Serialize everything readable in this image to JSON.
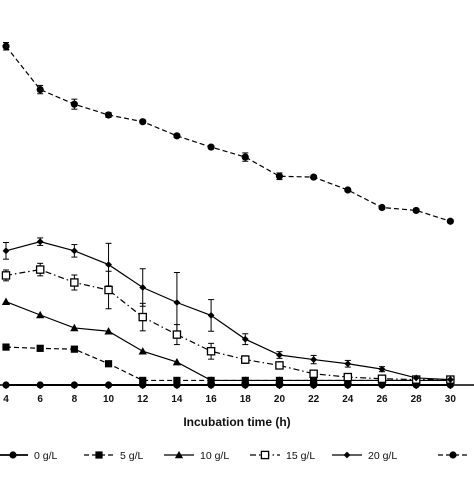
{
  "chart_data": {
    "type": "line",
    "xlabel": "Incubation time (h)",
    "ylabel": "",
    "xlim": [
      4,
      31.5
    ],
    "ylim": [
      0,
      90
    ],
    "x_ticks": [
      4,
      6,
      8,
      10,
      12,
      14,
      16,
      18,
      20,
      22,
      24,
      26,
      28,
      30
    ],
    "grid": false,
    "legend_position": "bottom",
    "series": [
      {
        "name": "0 g/L",
        "color": "#000000",
        "line_style": "solid",
        "marker": "circle-filled",
        "x": [
          4,
          6,
          8,
          10,
          12,
          14,
          16,
          18,
          20,
          22,
          24,
          26,
          28,
          30
        ],
        "y": [
          0,
          0,
          0,
          0,
          0,
          0,
          0,
          0,
          0,
          0,
          0,
          0,
          0,
          0
        ],
        "err": [
          0,
          0,
          0,
          0,
          0,
          0,
          0,
          0,
          0,
          0,
          0,
          0,
          0,
          0
        ]
      },
      {
        "name": "5 g/L",
        "color": "#000000",
        "line_style": "dashed",
        "marker": "square-filled",
        "x": [
          4,
          6,
          8,
          10,
          12,
          14,
          16,
          18,
          20,
          22,
          24,
          26,
          28,
          30
        ],
        "y": [
          9.1,
          8.8,
          8.6,
          5.1,
          1.1,
          1.1,
          1.1,
          1.1,
          1.1,
          1.1,
          1.1,
          1.1,
          1.1,
          1.1
        ],
        "err": [
          0,
          0,
          0,
          0,
          0,
          0,
          0,
          0,
          0,
          0,
          0,
          0,
          0,
          0
        ]
      },
      {
        "name": "10 g/L",
        "color": "#000000",
        "line_style": "solid",
        "marker": "triangle-filled",
        "x": [
          4,
          6,
          8,
          10,
          12,
          14,
          16,
          18,
          20,
          22,
          24,
          26,
          28,
          30
        ],
        "y": [
          20,
          16.8,
          13.7,
          12.9,
          8.1,
          5.5,
          1.1,
          1.1,
          1.1,
          1.1,
          1.1,
          1.1,
          1.1,
          1.1
        ],
        "err": [
          0,
          0,
          0,
          0,
          0,
          0,
          0,
          0,
          0,
          0,
          0,
          0,
          0,
          0
        ]
      },
      {
        "name": "15 g/L",
        "color": "#000000",
        "line_style": "dash-dot",
        "marker": "square-open",
        "x": [
          4,
          6,
          8,
          10,
          12,
          14,
          16,
          18,
          20,
          22,
          24,
          26,
          28,
          30
        ],
        "y": [
          26.3,
          27.7,
          24.6,
          22.8,
          16.3,
          12.1,
          8.1,
          6.1,
          4.7,
          2.7,
          1.9,
          1.5,
          1.3,
          1.3
        ],
        "err": [
          1.3,
          1.5,
          1.8,
          4.5,
          3.3,
          2.4,
          1.9,
          0.9,
          0.8,
          0.8,
          0.6,
          0.5,
          0.3,
          0.3
        ]
      },
      {
        "name": "20 g/L",
        "color": "#000000",
        "line_style": "solid",
        "marker": "diamond-filled",
        "x": [
          4,
          6,
          8,
          10,
          12,
          14,
          16,
          18,
          20,
          22,
          24,
          26,
          28,
          30
        ],
        "y": [
          32.2,
          34.4,
          32.2,
          28.9,
          23.4,
          19.8,
          16.7,
          11,
          7.2,
          6.1,
          5.1,
          3.8,
          1.7,
          1.3
        ],
        "err": [
          2,
          0.9,
          1.5,
          5.1,
          4.5,
          7.2,
          3.8,
          1.3,
          0.8,
          1,
          0.8,
          0.6,
          0.4,
          0.4
        ]
      },
      {
        "name": "",
        "color": "#000000",
        "line_style": "dashed",
        "marker": "circle-filled",
        "x": [
          4,
          6,
          8,
          10,
          12,
          14,
          16,
          18,
          20,
          22,
          24,
          26,
          28,
          30
        ],
        "y": [
          81.3,
          70.9,
          67.4,
          64.8,
          63.2,
          59.8,
          57.1,
          54.7,
          50.1,
          49.9,
          46.8,
          42.6,
          41.9,
          39.3
        ],
        "err": [
          0.9,
          1,
          1.2,
          0.6,
          0.4,
          0.4,
          0.4,
          1,
          0.8,
          0.4,
          0.4,
          0.4,
          0.4,
          0.4
        ]
      }
    ],
    "legend": [
      "0 g/L",
      "5 g/L",
      "10 g/L",
      "15 g/L",
      "20 g/L",
      ""
    ]
  }
}
